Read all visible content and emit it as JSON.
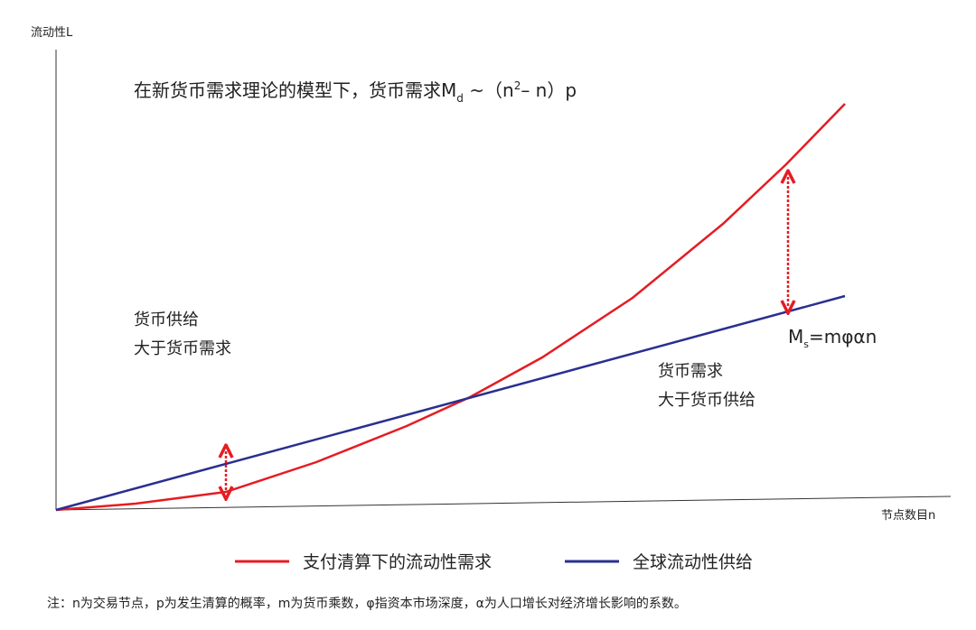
{
  "axes": {
    "y_label": "流动性L",
    "x_label": "节点数目n"
  },
  "title": {
    "main": "在新货币需求理论的模型下，货币需求M",
    "sub": "d",
    "mid": " ~（n",
    "sup": "2",
    "end": "– n）p"
  },
  "supply_formula": {
    "main": "M",
    "sub": "s",
    "end": "=mφαn"
  },
  "annotations": [
    {
      "lines": [
        "货币供给",
        "大于货币需求"
      ]
    },
    {
      "lines": [
        "货币需求",
        "大于货币供给"
      ]
    }
  ],
  "legend": [
    "支付清算下的流动性需求",
    "全球流动性供给"
  ],
  "note": "注：n为交易节点，p为发生清算的概率，m为货币乘数，φ指资本市场深度，α为人口增长对经济增长影响的系数。"
}
